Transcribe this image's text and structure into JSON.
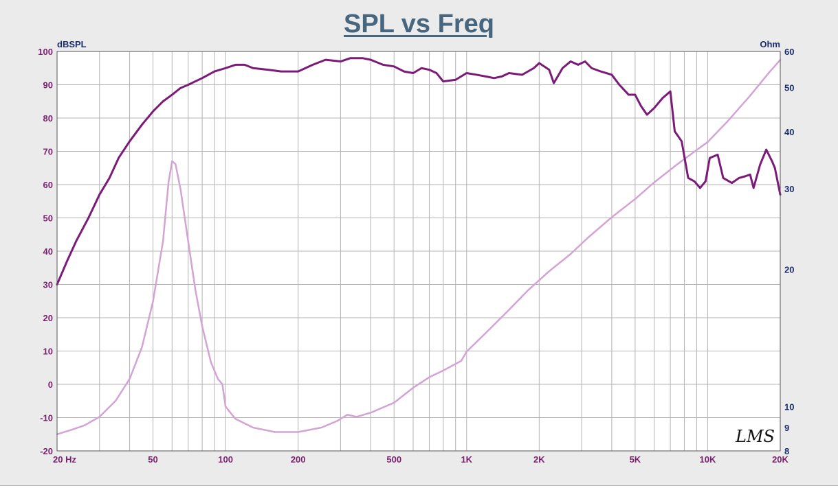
{
  "chart_data": {
    "type": "line",
    "title": "SPL vs Freq",
    "y_left_unit": "dBSPL",
    "y_right_unit": "Ohm",
    "x_scale": "log",
    "xlim": [
      20,
      20000
    ],
    "ylim_left": [
      -20,
      100
    ],
    "ylim_right_log": [
      8,
      60
    ],
    "x_tick_labels": [
      {
        "value": 20,
        "label": "20  Hz"
      },
      {
        "value": 50,
        "label": "50"
      },
      {
        "value": 100,
        "label": "100"
      },
      {
        "value": 200,
        "label": "200"
      },
      {
        "value": 500,
        "label": "500"
      },
      {
        "value": 1000,
        "label": "1K"
      },
      {
        "value": 2000,
        "label": "2K"
      },
      {
        "value": 5000,
        "label": "5K"
      },
      {
        "value": 10000,
        "label": "10K"
      },
      {
        "value": 20000,
        "label": "20K"
      }
    ],
    "y_left_ticks": [
      -20,
      -10,
      0,
      10,
      20,
      30,
      40,
      50,
      60,
      70,
      80,
      90,
      100
    ],
    "y_right_ticks": [
      8,
      9,
      10,
      20,
      30,
      40,
      50,
      60
    ],
    "grid": true,
    "series": [
      {
        "axis": "left",
        "color": "#7b1a78",
        "points": [
          [
            20,
            30
          ],
          [
            22,
            37
          ],
          [
            24,
            43
          ],
          [
            27,
            50
          ],
          [
            30,
            57
          ],
          [
            33,
            62
          ],
          [
            36,
            68
          ],
          [
            40,
            73
          ],
          [
            45,
            78
          ],
          [
            50,
            82
          ],
          [
            55,
            85
          ],
          [
            60,
            87
          ],
          [
            65,
            89
          ],
          [
            70,
            90
          ],
          [
            80,
            92
          ],
          [
            90,
            94
          ],
          [
            100,
            95
          ],
          [
            110,
            96
          ],
          [
            120,
            96
          ],
          [
            130,
            95
          ],
          [
            150,
            94.5
          ],
          [
            170,
            94
          ],
          [
            200,
            94
          ],
          [
            230,
            96
          ],
          [
            260,
            97.5
          ],
          [
            300,
            97
          ],
          [
            330,
            98
          ],
          [
            370,
            98
          ],
          [
            400,
            97.5
          ],
          [
            450,
            96
          ],
          [
            500,
            95.5
          ],
          [
            550,
            94
          ],
          [
            600,
            93.5
          ],
          [
            650,
            95
          ],
          [
            700,
            94.5
          ],
          [
            750,
            93.5
          ],
          [
            800,
            91
          ],
          [
            900,
            91.5
          ],
          [
            1000,
            93.5
          ],
          [
            1100,
            93
          ],
          [
            1200,
            92.5
          ],
          [
            1300,
            92
          ],
          [
            1400,
            92.5
          ],
          [
            1500,
            93.5
          ],
          [
            1700,
            93
          ],
          [
            1900,
            95
          ],
          [
            2000,
            96.5
          ],
          [
            2200,
            94.5
          ],
          [
            2300,
            90.5
          ],
          [
            2500,
            95
          ],
          [
            2700,
            97
          ],
          [
            2900,
            96
          ],
          [
            3100,
            97
          ],
          [
            3300,
            95
          ],
          [
            3600,
            94
          ],
          [
            4000,
            93
          ],
          [
            4300,
            90
          ],
          [
            4700,
            87
          ],
          [
            5000,
            87
          ],
          [
            5300,
            83.5
          ],
          [
            5600,
            81
          ],
          [
            6000,
            83
          ],
          [
            6500,
            86
          ],
          [
            7000,
            88
          ],
          [
            7300,
            76
          ],
          [
            7800,
            73
          ],
          [
            8300,
            62
          ],
          [
            8800,
            61
          ],
          [
            9300,
            59
          ],
          [
            9800,
            61
          ],
          [
            10200,
            68
          ],
          [
            11000,
            69
          ],
          [
            11600,
            62
          ],
          [
            12600,
            60.5
          ],
          [
            13500,
            62
          ],
          [
            14300,
            62.5
          ],
          [
            15000,
            63
          ],
          [
            15500,
            59
          ],
          [
            16500,
            66
          ],
          [
            17500,
            70.5
          ],
          [
            18500,
            67
          ],
          [
            19000,
            65
          ],
          [
            20000,
            57
          ]
        ]
      },
      {
        "axis": "right",
        "color": "#d4a3d6",
        "points": [
          [
            20,
            8.7
          ],
          [
            23,
            8.9
          ],
          [
            26,
            9.1
          ],
          [
            30,
            9.5
          ],
          [
            35,
            10.3
          ],
          [
            40,
            11.5
          ],
          [
            45,
            13.5
          ],
          [
            50,
            17
          ],
          [
            55,
            23
          ],
          [
            58,
            31
          ],
          [
            60,
            34.5
          ],
          [
            62,
            34
          ],
          [
            65,
            30
          ],
          [
            70,
            23
          ],
          [
            75,
            18
          ],
          [
            80,
            15
          ],
          [
            87,
            12.5
          ],
          [
            93,
            11.5
          ],
          [
            97,
            11.2
          ],
          [
            100,
            10
          ],
          [
            110,
            9.4
          ],
          [
            130,
            9
          ],
          [
            160,
            8.8
          ],
          [
            200,
            8.8
          ],
          [
            250,
            9
          ],
          [
            290,
            9.3
          ],
          [
            320,
            9.6
          ],
          [
            350,
            9.5
          ],
          [
            400,
            9.7
          ],
          [
            500,
            10.2
          ],
          [
            600,
            11
          ],
          [
            700,
            11.6
          ],
          [
            800,
            12
          ],
          [
            950,
            12.6
          ],
          [
            1000,
            13.2
          ],
          [
            1200,
            14.5
          ],
          [
            1500,
            16.3
          ],
          [
            1800,
            18
          ],
          [
            2200,
            19.8
          ],
          [
            2700,
            21.6
          ],
          [
            3200,
            23.5
          ],
          [
            4000,
            26
          ],
          [
            5000,
            28.5
          ],
          [
            6000,
            31
          ],
          [
            7500,
            34
          ],
          [
            9000,
            36.5
          ],
          [
            10000,
            38
          ],
          [
            12000,
            42
          ],
          [
            15000,
            48
          ],
          [
            18000,
            54
          ],
          [
            20000,
            57.5
          ]
        ]
      }
    ]
  },
  "watermark": "LMS",
  "colors": {
    "background": "#ebebeb",
    "plot_area": "#ffffff",
    "grid": "#b3b3b3",
    "title": "#45667e",
    "spl_curve": "#7b1a78",
    "impedance_curve": "#d4a3d6"
  }
}
